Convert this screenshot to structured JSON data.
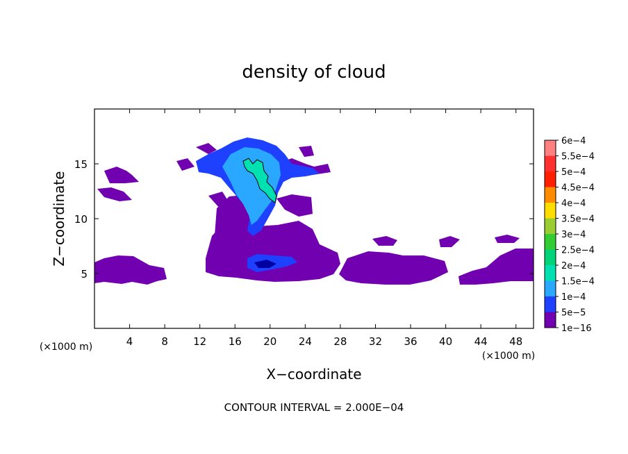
{
  "chart_data": {
    "type": "heatmap",
    "title": "density of cloud",
    "xlabel": "X−coordinate",
    "ylabel": "Z−coordinate",
    "x_unit": "(×1000 m)",
    "z_unit": "(×1000 m)",
    "xlim": [
      0,
      50
    ],
    "ylim": [
      0,
      20
    ],
    "x_ticks": [
      4,
      8,
      12,
      16,
      20,
      24,
      28,
      32,
      36,
      40,
      44,
      48
    ],
    "y_ticks": [
      5,
      10,
      15
    ],
    "footer": "CONTOUR INTERVAL = 2.000E−04",
    "colorbar": {
      "labels": [
        "6e−4",
        "5.5e−4",
        "5e−4",
        "4.5e−4",
        "4e−4",
        "3.5e−4",
        "3e−4",
        "2.5e−4",
        "2e−4",
        "1.5e−4",
        "1e−4",
        "5e−5",
        "1e−16"
      ],
      "colors": [
        "#ff8080",
        "#ff3030",
        "#ff2000",
        "#ff8c00",
        "#ffdc00",
        "#9acd32",
        "#33cc33",
        "#00d47a",
        "#00e0b0",
        "#2aa8ff",
        "#1e40ff",
        "#0000a0",
        "#7000b0"
      ]
    }
  }
}
